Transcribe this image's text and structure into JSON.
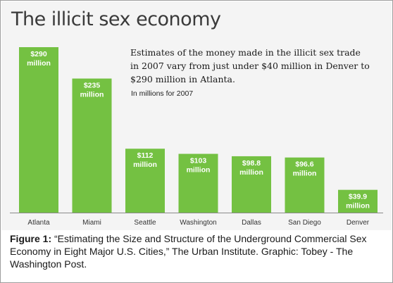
{
  "chart_data": {
    "type": "bar",
    "title": "The illicit sex economy",
    "subtitle": "Estimates of the money made in the illicit sex trade in 2007 vary from just under $40 million in Denver to $290 million in Atlanta.",
    "unit_note": "In millions for 2007",
    "categories": [
      "Atlanta",
      "Miami",
      "Seattle",
      "Washington",
      "Dallas",
      "San Diego",
      "Denver"
    ],
    "values": [
      290,
      235,
      112,
      103,
      98.8,
      96.6,
      39.9
    ],
    "value_labels": [
      [
        "$290",
        "million"
      ],
      [
        "$235",
        "million"
      ],
      [
        "$112",
        "million"
      ],
      [
        "$103",
        "million"
      ],
      [
        "$98.8",
        "million"
      ],
      [
        "$96.6",
        "million"
      ],
      [
        "$39.9",
        "million"
      ]
    ],
    "xlabel": "",
    "ylabel": "",
    "ylim": [
      0,
      290
    ],
    "grid": false,
    "bar_color": "#74c142",
    "value_label_color": "#ffffff"
  },
  "caption": {
    "label": "Figure 1:",
    "text": " “Estimating the Size and Structure of the Underground Commercial Sex Economy in Eight Major U.S. Cities,” The Urban Institute. Graphic: Tobey - The Washington Post."
  }
}
